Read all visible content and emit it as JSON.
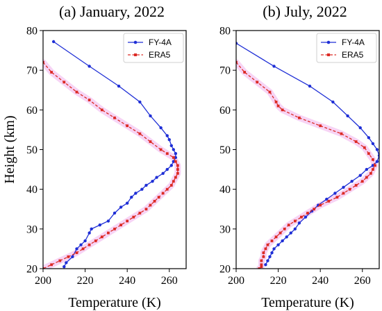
{
  "chart_data": [
    {
      "type": "line",
      "title": "(a) January, 2022",
      "xlabel": "Temperature (K)",
      "ylabel": "Height (km)",
      "xlim": [
        200,
        268
      ],
      "ylim": [
        20,
        80
      ],
      "xticks": [
        200,
        220,
        240,
        260
      ],
      "yticks": [
        20,
        30,
        40,
        50,
        60,
        70,
        80
      ],
      "legend": "top-right",
      "series": [
        {
          "name": "FY-4A",
          "color": "#1f2fd6",
          "linestyle": "solid",
          "marker": "circle",
          "x": [
            205,
            222,
            236,
            246,
            251,
            256,
            259,
            260,
            261,
            262,
            263,
            263,
            262,
            261,
            259,
            257,
            254,
            252,
            249,
            247,
            244,
            242,
            240,
            237,
            234,
            231,
            227,
            223,
            222,
            220,
            218,
            216,
            214,
            211,
            210
          ],
          "y": [
            77.2,
            71.0,
            66.0,
            62.0,
            58.5,
            55.5,
            53.5,
            52.5,
            51.0,
            50.0,
            49.0,
            48.0,
            47.0,
            46.0,
            45.0,
            44.0,
            43.0,
            42.0,
            41.0,
            40.0,
            39.0,
            38.0,
            36.5,
            35.5,
            34.0,
            32.0,
            31.0,
            30.0,
            29.0,
            27.0,
            26.0,
            25.0,
            23.0,
            21.5,
            20.5
          ]
        },
        {
          "name": "ERA5",
          "color": "#dc2a24",
          "linestyle": "dashed",
          "marker": "square",
          "x": [
            200,
            204,
            210,
            216,
            222,
            228,
            234,
            240,
            246,
            251,
            256,
            259,
            262,
            263,
            264,
            264,
            264,
            263,
            262,
            261,
            259,
            257,
            255,
            253,
            251,
            249,
            246,
            243,
            240,
            237,
            234,
            231,
            228,
            225,
            222,
            219,
            216,
            212,
            208,
            204,
            200
          ],
          "y": [
            72.0,
            69.5,
            67.0,
            64.5,
            62.5,
            60.0,
            58.0,
            56.0,
            54.0,
            52.0,
            50.0,
            49.0,
            48.0,
            47.0,
            46.0,
            45.0,
            44.0,
            43.0,
            42.0,
            41.0,
            40.0,
            39.0,
            38.0,
            37.0,
            36.0,
            35.0,
            34.0,
            33.0,
            32.0,
            31.0,
            30.0,
            29.0,
            28.0,
            27.0,
            26.0,
            25.0,
            24.0,
            23.0,
            22.0,
            21.0,
            20.0
          ]
        }
      ]
    },
    {
      "type": "line",
      "title": "(b) July, 2022",
      "xlabel": "Temperature (K)",
      "ylabel": "",
      "xlim": [
        200,
        268
      ],
      "ylim": [
        20,
        80
      ],
      "xticks": [
        200,
        220,
        240,
        260
      ],
      "yticks": [
        20,
        30,
        40,
        50,
        60,
        70,
        80
      ],
      "legend": "top-right",
      "series": [
        {
          "name": "FY-4A",
          "color": "#1f2fd6",
          "linestyle": "solid",
          "marker": "circle",
          "x": [
            200,
            218,
            235,
            246,
            253,
            259,
            263,
            265,
            267,
            268,
            267,
            265,
            262,
            259,
            255,
            251,
            247,
            243,
            239,
            236,
            233,
            230,
            228,
            226,
            224,
            222,
            220,
            218,
            217,
            216,
            215,
            214
          ],
          "y": [
            76.8,
            71.0,
            66.0,
            62.0,
            58.5,
            55.5,
            53.0,
            51.5,
            50.0,
            48.5,
            47.0,
            46.0,
            45.0,
            43.5,
            42.0,
            40.5,
            39.0,
            37.5,
            36.0,
            34.5,
            33.0,
            31.5,
            30.0,
            29.0,
            28.0,
            27.0,
            26.0,
            25.0,
            24.0,
            23.0,
            22.0,
            21.0
          ]
        },
        {
          "name": "ERA5",
          "color": "#dc2a24",
          "linestyle": "dashed",
          "marker": "square",
          "x": [
            200,
            204,
            210,
            216,
            219,
            220,
            222,
            230,
            240,
            250,
            257,
            261,
            263,
            265,
            266,
            265,
            264,
            262,
            260,
            257,
            254,
            251,
            248,
            244,
            240,
            237,
            234,
            231,
            228,
            225,
            223,
            221,
            219,
            217,
            215,
            214,
            213,
            213,
            212,
            212,
            212,
            211
          ],
          "y": [
            72.0,
            69.5,
            67.0,
            64.5,
            62.0,
            61.0,
            60.0,
            58.0,
            56.0,
            54.0,
            52.0,
            50.5,
            49.0,
            47.5,
            46.0,
            45.0,
            44.0,
            43.0,
            42.0,
            41.0,
            40.0,
            39.0,
            38.0,
            37.0,
            36.0,
            35.0,
            34.0,
            33.0,
            32.0,
            31.0,
            30.0,
            29.0,
            28.0,
            27.0,
            26.0,
            25.0,
            24.0,
            23.0,
            22.0,
            21.0,
            20.5,
            20.0
          ]
        }
      ]
    }
  ]
}
